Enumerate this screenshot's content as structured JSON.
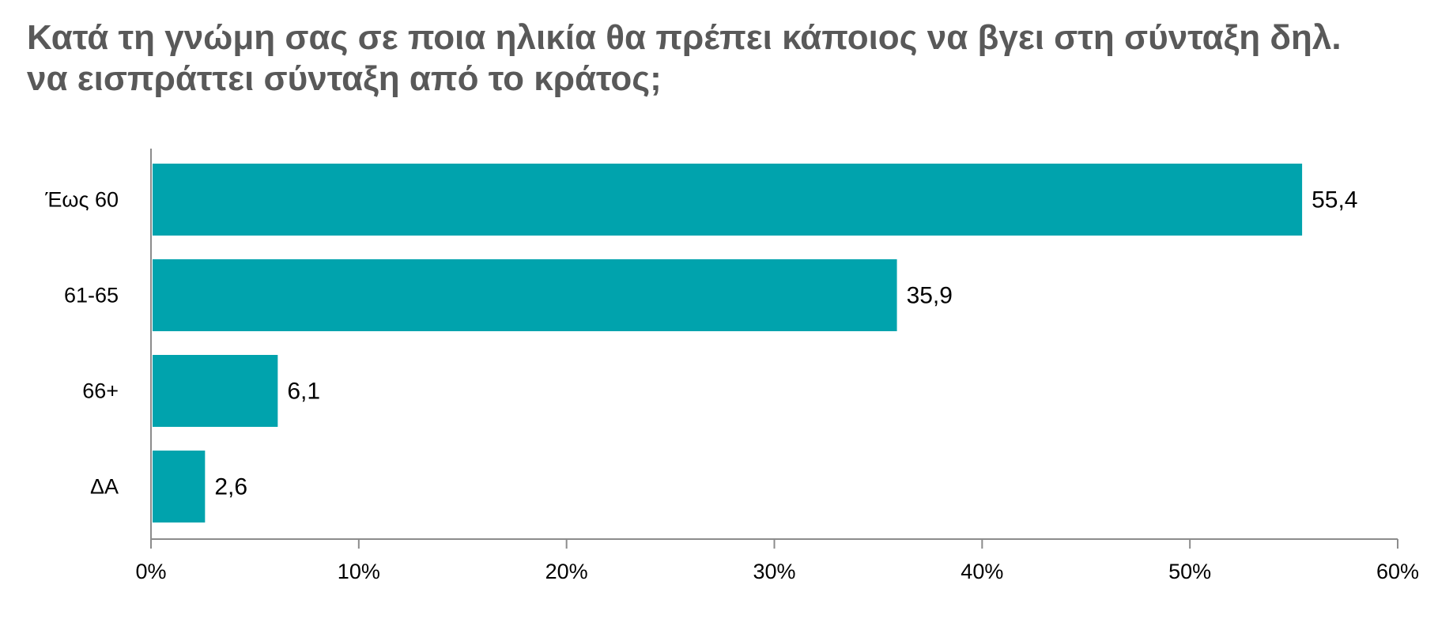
{
  "title_lines": [
    "Κατά τη γνώμη σας σε ποια ηλικία θα πρέπει κάποιος να βγει στη σύνταξη δηλ.",
    "να εισπράττει σύνταξη από το κράτος;"
  ],
  "colors": {
    "bar": "#00A3AD",
    "axis": "#8c8c8c",
    "title": "#595959",
    "label": "#000000"
  },
  "chart_data": {
    "type": "bar",
    "orientation": "horizontal",
    "title": "Κατά τη γνώμη σας σε ποια ηλικία θα πρέπει κάποιος να βγει στη σύνταξη δηλ. να εισπράττει σύνταξη από το κράτος;",
    "categories": [
      "Έως 60",
      "61-65",
      "66+",
      "ΔΑ"
    ],
    "values": [
      55.4,
      35.9,
      6.1,
      2.6
    ],
    "value_labels": [
      "55,4",
      "35,9",
      "6,1",
      "2,6"
    ],
    "xlim": [
      0,
      60
    ],
    "x_ticks": [
      0,
      10,
      20,
      30,
      40,
      50,
      60
    ],
    "x_tick_labels": [
      "0%",
      "10%",
      "20%",
      "30%",
      "40%",
      "50%",
      "60%"
    ],
    "xlabel": "",
    "ylabel": "",
    "grid": false,
    "legend": "none"
  }
}
